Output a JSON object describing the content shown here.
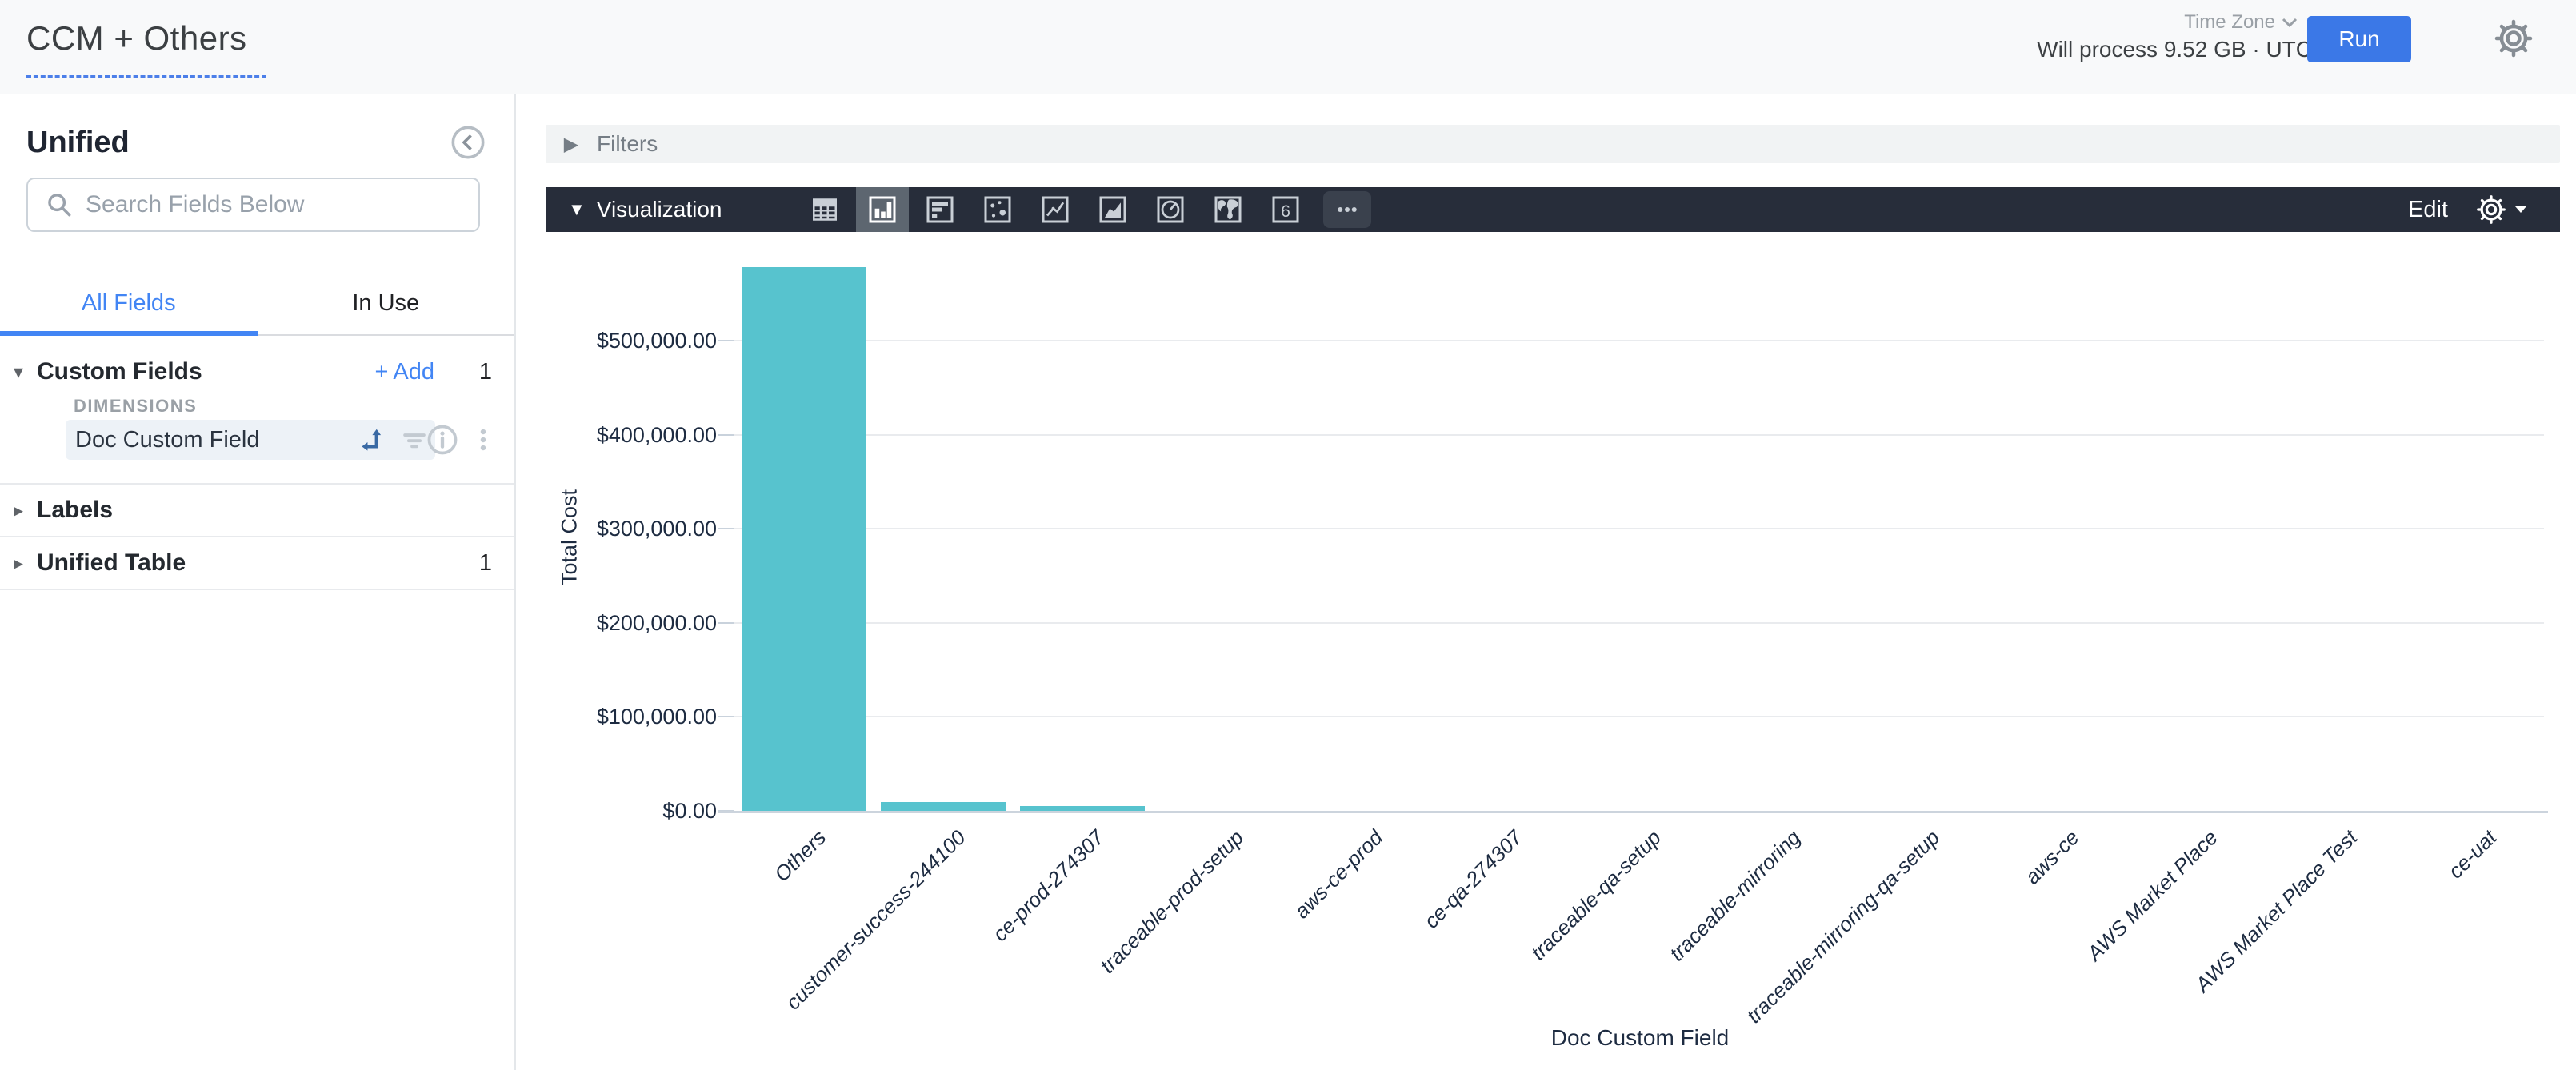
{
  "header": {
    "title": "CCM + Others",
    "process_info": "Will process 9.52 GB · UTC",
    "time_zone_label": "Time Zone",
    "run_label": "Run"
  },
  "sidebar": {
    "view_name": "Unified",
    "search_placeholder": "Search Fields Below",
    "tabs": {
      "all_fields": "All Fields",
      "in_use": "In Use"
    },
    "custom_fields": {
      "label": "Custom Fields",
      "add_label": "Add",
      "plus": "+",
      "count": "1",
      "dimensions_label": "DIMENSIONS",
      "field": "Doc Custom Field"
    },
    "labels_section": {
      "label": "Labels"
    },
    "unified_table": {
      "label": "Unified Table",
      "count": "1"
    }
  },
  "main": {
    "filters_label": "Filters",
    "visualization_label": "Visualization",
    "edit_label": "Edit",
    "viz_icon_names": [
      "table",
      "column-chart",
      "bar-chart",
      "scatter-chart",
      "line-chart",
      "area-chart",
      "pie-chart",
      "map",
      "single-value",
      "more"
    ],
    "single_value_glyph": "6"
  },
  "chart_data": {
    "type": "bar",
    "title": "",
    "xlabel": "Doc Custom Field",
    "ylabel": "Total Cost",
    "categories": [
      "Others",
      "customer-success-244100",
      "ce-prod-274307",
      "traceable-prod-setup",
      "aws-ce-prod",
      "ce-qa-274307",
      "traceable-qa-setup",
      "traceable-mirroring",
      "traceable-mirroring-qa-setup",
      "aws-ce",
      "AWS Market Place",
      "AWS Market Place Test",
      "ce-uat"
    ],
    "values": [
      578000,
      9500,
      5200,
      0,
      0,
      0,
      0,
      0,
      0,
      0,
      0,
      0,
      0
    ],
    "ylim": [
      0,
      580000
    ],
    "yticks": [
      {
        "value": 500000,
        "label": "$500,000.00"
      },
      {
        "value": 400000,
        "label": "$400,000.00"
      },
      {
        "value": 300000,
        "label": "$300,000.00"
      },
      {
        "value": 200000,
        "label": "$200,000.00"
      },
      {
        "value": 100000,
        "label": "$100,000.00"
      },
      {
        "value": 0,
        "label": "$0.00"
      }
    ],
    "bar_color": "#57c3ce",
    "grid": true,
    "legend": false
  }
}
